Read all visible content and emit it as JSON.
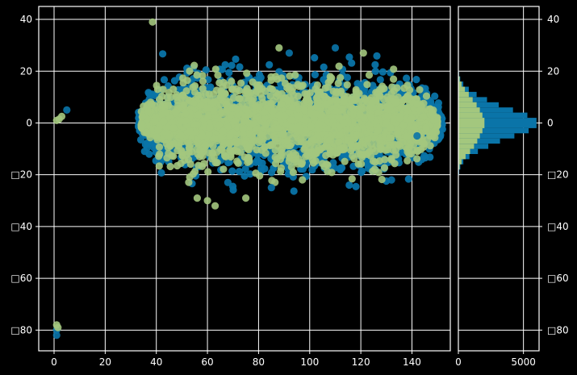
{
  "colors": {
    "background": "#000000",
    "foreground": "#ffffff",
    "series_a": "#0a74a8",
    "series_b": "#a3c77e"
  },
  "chart_data": [
    {
      "type": "scatter",
      "title": "",
      "xlabel": "",
      "ylabel": "",
      "xlim": [
        -6,
        155
      ],
      "ylim": [
        -88,
        45
      ],
      "grid": true,
      "x_ticks": [
        0,
        20,
        40,
        60,
        80,
        100,
        120,
        140
      ],
      "x_tick_labels": [
        "0",
        "20",
        "40",
        "60",
        "80",
        "100",
        "120",
        "140"
      ],
      "y_ticks": [
        40,
        20,
        0,
        -20,
        -40,
        -60,
        -80
      ],
      "y_tick_labels": [
        "40",
        "20",
        "0",
        "□20",
        "□40",
        "□60",
        "□80"
      ],
      "series": [
        {
          "color": "#0a74a8",
          "cluster": {
            "x_range": [
              33,
              152
            ],
            "y_center": 0,
            "y_spread": 22,
            "count": 2200
          },
          "points": [
            [
              5,
              5
            ],
            [
              1,
              -82
            ],
            [
              1,
              -80
            ],
            [
              110,
              29
            ],
            [
              142,
              -5
            ],
            [
              68,
              -23
            ],
            [
              85,
              -25
            ],
            [
              132,
              -22
            ],
            [
              92,
              27
            ]
          ]
        },
        {
          "color": "#a3c77e",
          "cluster": {
            "x_range": [
              34,
              150
            ],
            "y_center": 0,
            "y_spread": 19,
            "count": 2200
          },
          "points": [
            [
              38.5,
              39
            ],
            [
              1,
              1
            ],
            [
              2,
              1.5
            ],
            [
              3,
              2.5
            ],
            [
              1,
              -78
            ],
            [
              1.5,
              -79
            ],
            [
              60,
              -30
            ],
            [
              63,
              -32
            ],
            [
              75,
              -29
            ],
            [
              121,
              27
            ],
            [
              88,
              29
            ],
            [
              56,
              -29
            ]
          ]
        }
      ]
    },
    {
      "type": "bar",
      "orientation": "horizontal",
      "title": "",
      "xlabel": "",
      "ylabel": "",
      "xlim": [
        0,
        6200
      ],
      "ylim": [
        -88,
        45
      ],
      "grid": true,
      "x_ticks": [
        0,
        5000
      ],
      "x_tick_labels": [
        "0",
        "5000"
      ],
      "y_ticks": [
        40,
        20,
        0,
        -20,
        -40,
        -60,
        -80
      ],
      "y_tick_labels": [
        "40",
        "20",
        "0",
        "□20",
        "□40",
        "□60",
        "□80"
      ],
      "bin_edges": [
        -20,
        -18,
        -16,
        -14,
        -12,
        -10,
        -8,
        -6,
        -4,
        -2,
        0,
        2,
        4,
        6,
        8,
        10,
        12,
        14,
        16,
        18,
        20
      ],
      "series": [
        {
          "color": "#0a74a8",
          "counts": [
            60,
            150,
            380,
            850,
            1500,
            2300,
            3200,
            4300,
            5400,
            6000,
            6000,
            5300,
            4200,
            3100,
            2200,
            1400,
            800,
            380,
            140,
            50
          ]
        },
        {
          "color": "#a3c77e",
          "counts": [
            30,
            90,
            250,
            550,
            900,
            1200,
            1450,
            1650,
            1850,
            2000,
            2000,
            1850,
            1650,
            1400,
            1100,
            800,
            500,
            250,
            100,
            40
          ]
        }
      ]
    }
  ]
}
